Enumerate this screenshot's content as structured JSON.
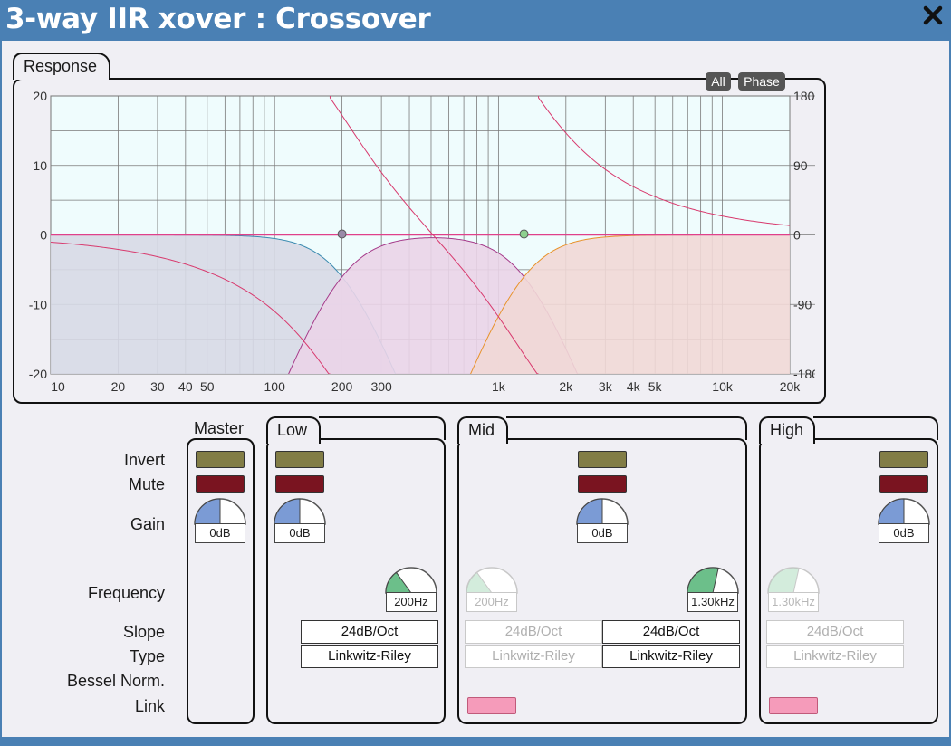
{
  "window": {
    "title": "3-way IIR xover : Crossover",
    "close_icon": "close-icon"
  },
  "response": {
    "label": "Response",
    "buttons": {
      "all": "All",
      "phase": "Phase"
    },
    "y_left_ticks": [
      "20",
      "10",
      "0",
      "-10",
      "-20"
    ],
    "y_right_ticks": [
      "180",
      "90",
      "0",
      "-90",
      "-180"
    ],
    "x_ticks": [
      "10",
      "20",
      "30",
      "40",
      "50",
      "100",
      "200",
      "300",
      "1k",
      "2k",
      "3k",
      "4k",
      "5k",
      "10k",
      "20k"
    ]
  },
  "chart_data": {
    "type": "area",
    "title": "",
    "x_scale": "log",
    "xlim": [
      10,
      20000
    ],
    "ylim": [
      -20,
      20
    ],
    "y2lim": [
      -180,
      180
    ],
    "grid": true,
    "crossover_points": [
      200,
      1300
    ],
    "series": [
      {
        "color": "#3a8ab0",
        "fill": "#d7d9e6",
        "type": "lowpass",
        "fc": 200,
        "order": 4
      },
      {
        "color": "#a53a8a",
        "fill": "#ead4e8",
        "type": "bandpass",
        "fl": 200,
        "fh": 1300,
        "order": 4
      },
      {
        "color": "#e8922a",
        "fill": "#f1d8d6",
        "type": "highpass",
        "fc": 1300,
        "order": 4
      },
      {
        "color": "#e0408a",
        "type": "sum",
        "axis": "magnitude"
      },
      {
        "color": "#d83a6e",
        "type": "sum",
        "axis": "phase"
      }
    ]
  },
  "rows": {
    "invert": "Invert",
    "mute": "Mute",
    "gain": "Gain",
    "frequency": "Frequency",
    "slope": "Slope",
    "type": "Type",
    "bessel": "Bessel Norm.",
    "link": "Link"
  },
  "groups": {
    "master": {
      "label": "Master",
      "gain": "0dB",
      "gain_fraction": 0.5
    },
    "low": {
      "label": "Low",
      "gain": "0dB",
      "gain_fraction": 0.5,
      "frequency": "200Hz",
      "freq_fraction": 0.3,
      "slope": "24dB/Oct",
      "type": "Linkwitz-Riley"
    },
    "mid": {
      "label": "Mid",
      "gain": "0dB",
      "gain_fraction": 0.5,
      "freq_low": "200Hz",
      "freq_low_fraction": 0.3,
      "freq_high": "1.30kHz",
      "freq_high_fraction": 0.57,
      "slope_low": "24dB/Oct",
      "type_low": "Linkwitz-Riley",
      "slope_high": "24dB/Oct",
      "type_high": "Linkwitz-Riley"
    },
    "high": {
      "label": "High",
      "gain": "0dB",
      "gain_fraction": 0.5,
      "frequency": "1.30kHz",
      "freq_fraction": 0.57,
      "slope": "24dB/Oct",
      "type": "Linkwitz-Riley"
    }
  },
  "colors": {
    "titlebar": "#4a80b4",
    "invert": "#827d46",
    "mute": "#7a1420",
    "link": "#f59bba",
    "gain_knob": "#7b9bd5",
    "freq_knob": "#6cbf8a"
  }
}
